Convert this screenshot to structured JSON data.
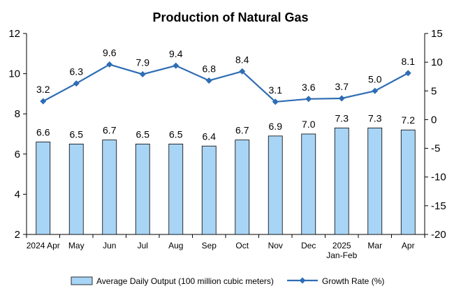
{
  "chart_data": {
    "type": "bar",
    "title": "Production of Natural Gas",
    "categories": [
      "2024 Apr",
      "May",
      "Jun",
      "Jul",
      "Aug",
      "Sep",
      "Oct",
      "Nov",
      "Dec",
      "2025 Jan-Feb",
      "Mar",
      "Apr"
    ],
    "category_lines": [
      [
        "2024 Apr"
      ],
      [
        "May"
      ],
      [
        "Jun"
      ],
      [
        "Jul"
      ],
      [
        "Aug"
      ],
      [
        "Sep"
      ],
      [
        "Oct"
      ],
      [
        "Nov"
      ],
      [
        "Dec"
      ],
      [
        "2025",
        "Jan-Feb"
      ],
      [
        "Mar"
      ],
      [
        "Apr"
      ]
    ],
    "series": [
      {
        "name": "Average Daily Output (100 million cubic meters)",
        "type": "bar",
        "axis": "left",
        "color": "#a8d4f5",
        "values": [
          6.6,
          6.5,
          6.7,
          6.5,
          6.5,
          6.4,
          6.7,
          6.9,
          7.0,
          7.3,
          7.3,
          7.2
        ],
        "labels": [
          "6.6",
          "6.5",
          "6.7",
          "6.5",
          "6.5",
          "6.4",
          "6.7",
          "6.9",
          "7.0",
          "7.3",
          "7.3",
          "7.2"
        ]
      },
      {
        "name": "Growth Rate (%)",
        "type": "line",
        "axis": "right",
        "color": "#2e6db4",
        "values": [
          3.2,
          6.3,
          9.6,
          7.9,
          9.4,
          6.8,
          8.4,
          3.1,
          3.6,
          3.7,
          5.0,
          8.1
        ],
        "labels": [
          "3.2",
          "6.3",
          "9.6",
          "7.9",
          "9.4",
          "6.8",
          "8.4",
          "3.1",
          "3.6",
          "3.7",
          "5.0",
          "8.1"
        ]
      }
    ],
    "y_left": {
      "min": 2,
      "max": 12,
      "ticks": [
        "2",
        "4",
        "6",
        "8",
        "10",
        "12"
      ]
    },
    "y_right": {
      "min": -20,
      "max": 15,
      "ticks": [
        "-20",
        "-15",
        "-10",
        "-5",
        "0",
        "5",
        "10",
        "15"
      ]
    },
    "grid": false,
    "legend_position": "bottom"
  }
}
